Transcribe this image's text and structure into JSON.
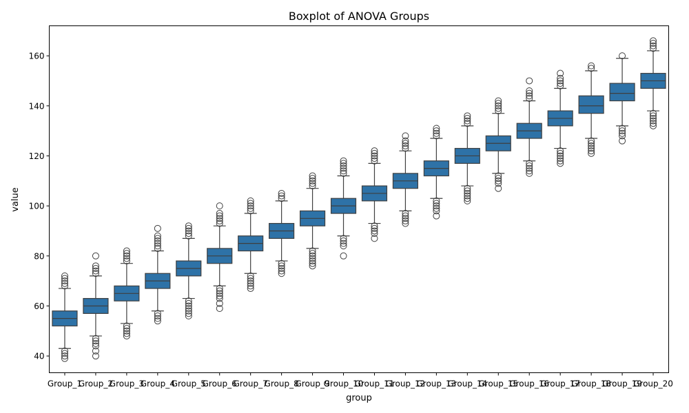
{
  "chart_data": {
    "type": "box",
    "title": "Boxplot of ANOVA Groups",
    "xlabel": "group",
    "ylabel": "value",
    "ylim": [
      33.3,
      172
    ],
    "yticks": [
      40,
      60,
      80,
      100,
      120,
      140,
      160
    ],
    "grid": false,
    "box_color": "#2e72a7",
    "categories": [
      "Group_1",
      "Group_2",
      "Group_3",
      "Group_4",
      "Group_5",
      "Group_6",
      "Group_7",
      "Group_8",
      "Group_9",
      "Group_10",
      "Group_11",
      "Group_12",
      "Group_13",
      "Group_14",
      "Group_15",
      "Group_16",
      "Group_17",
      "Group_18",
      "Group_19",
      "Group_20"
    ],
    "boxes": [
      {
        "q1": 52,
        "median": 55,
        "q3": 58,
        "whisker_low": 43,
        "whisker_high": 67,
        "outliers": [
          39,
          40,
          41,
          42,
          68,
          69,
          70,
          71,
          72
        ]
      },
      {
        "q1": 57,
        "median": 60,
        "q3": 63,
        "whisker_low": 48,
        "whisker_high": 72,
        "outliers": [
          40,
          42,
          44,
          45,
          46,
          47,
          73,
          74,
          75,
          76,
          80
        ]
      },
      {
        "q1": 62,
        "median": 65,
        "q3": 68,
        "whisker_low": 53,
        "whisker_high": 77,
        "outliers": [
          48,
          49,
          50,
          51,
          52,
          78,
          79,
          80,
          81,
          82
        ]
      },
      {
        "q1": 67,
        "median": 70,
        "q3": 73,
        "whisker_low": 58,
        "whisker_high": 82,
        "outliers": [
          54,
          55,
          56,
          57,
          83,
          84,
          85,
          86,
          87,
          88,
          91
        ]
      },
      {
        "q1": 72,
        "median": 75,
        "q3": 78,
        "whisker_low": 63,
        "whisker_high": 87,
        "outliers": [
          56,
          57,
          58,
          59,
          60,
          61,
          62,
          88,
          89,
          90,
          91,
          92
        ]
      },
      {
        "q1": 77,
        "median": 80,
        "q3": 83,
        "whisker_low": 68,
        "whisker_high": 92,
        "outliers": [
          59,
          61,
          63,
          64,
          65,
          66,
          67,
          93,
          94,
          95,
          96,
          97,
          100
        ]
      },
      {
        "q1": 82,
        "median": 85,
        "q3": 88,
        "whisker_low": 73,
        "whisker_high": 97,
        "outliers": [
          67,
          68,
          69,
          70,
          71,
          72,
          98,
          99,
          100,
          101,
          102
        ]
      },
      {
        "q1": 87,
        "median": 90,
        "q3": 93,
        "whisker_low": 78,
        "whisker_high": 102,
        "outliers": [
          73,
          74,
          75,
          76,
          77,
          103,
          104,
          105
        ]
      },
      {
        "q1": 92,
        "median": 95,
        "q3": 98,
        "whisker_low": 83,
        "whisker_high": 107,
        "outliers": [
          76,
          77,
          78,
          79,
          80,
          81,
          82,
          108,
          109,
          110,
          111,
          112
        ]
      },
      {
        "q1": 97,
        "median": 100,
        "q3": 103,
        "whisker_low": 88,
        "whisker_high": 112,
        "outliers": [
          80,
          84,
          85,
          86,
          87,
          113,
          114,
          115,
          116,
          117,
          118
        ]
      },
      {
        "q1": 102,
        "median": 105,
        "q3": 108,
        "whisker_low": 93,
        "whisker_high": 117,
        "outliers": [
          87,
          89,
          90,
          91,
          92,
          118,
          119,
          120,
          121,
          122
        ]
      },
      {
        "q1": 107,
        "median": 110,
        "q3": 113,
        "whisker_low": 98,
        "whisker_high": 122,
        "outliers": [
          93,
          94,
          95,
          96,
          97,
          123,
          124,
          125,
          126,
          128
        ]
      },
      {
        "q1": 112,
        "median": 115,
        "q3": 118,
        "whisker_low": 103,
        "whisker_high": 127,
        "outliers": [
          96,
          98,
          99,
          100,
          101,
          102,
          128,
          129,
          130,
          131
        ]
      },
      {
        "q1": 117,
        "median": 120,
        "q3": 123,
        "whisker_low": 108,
        "whisker_high": 132,
        "outliers": [
          102,
          103,
          104,
          105,
          106,
          107,
          133,
          134,
          135,
          136
        ]
      },
      {
        "q1": 122,
        "median": 125,
        "q3": 128,
        "whisker_low": 113,
        "whisker_high": 137,
        "outliers": [
          107,
          109,
          110,
          111,
          112,
          138,
          139,
          140,
          141,
          142
        ]
      },
      {
        "q1": 127,
        "median": 130,
        "q3": 133,
        "whisker_low": 118,
        "whisker_high": 142,
        "outliers": [
          113,
          114,
          115,
          116,
          117,
          143,
          144,
          145,
          146,
          150
        ]
      },
      {
        "q1": 132,
        "median": 135,
        "q3": 138,
        "whisker_low": 123,
        "whisker_high": 147,
        "outliers": [
          117,
          118,
          119,
          120,
          121,
          122,
          148,
          149,
          150,
          151,
          153
        ]
      },
      {
        "q1": 137,
        "median": 140,
        "q3": 144,
        "whisker_low": 127,
        "whisker_high": 154,
        "outliers": [
          121,
          122,
          123,
          124,
          125,
          126,
          155,
          156
        ]
      },
      {
        "q1": 142,
        "median": 145,
        "q3": 149,
        "whisker_low": 132,
        "whisker_high": 159,
        "outliers": [
          126,
          128,
          129,
          130,
          131,
          160
        ]
      },
      {
        "q1": 147,
        "median": 150,
        "q3": 153,
        "whisker_low": 138,
        "whisker_high": 162,
        "outliers": [
          132,
          133,
          134,
          135,
          136,
          137,
          163,
          164,
          165,
          166
        ]
      }
    ]
  }
}
